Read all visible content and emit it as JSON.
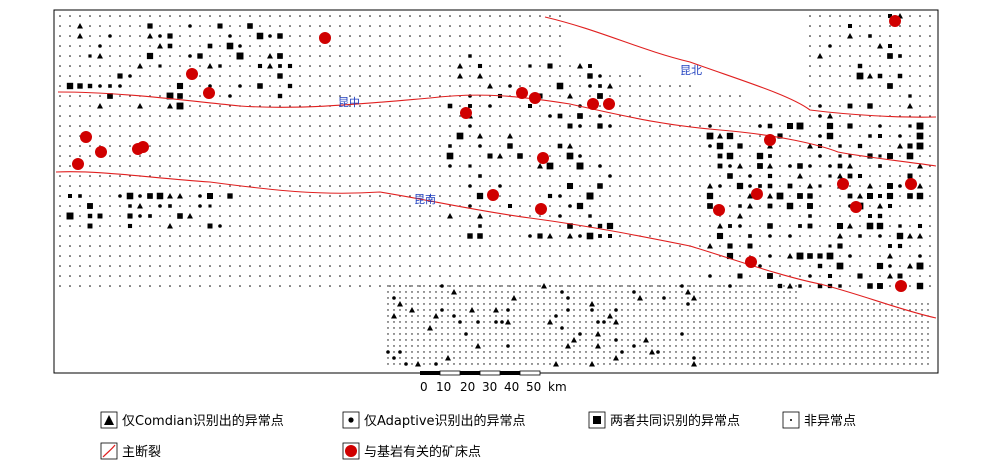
{
  "faults": {
    "label_north": "昆北",
    "label_middle": "昆中",
    "label_south": "昆南"
  },
  "scale": {
    "ticks": [
      "0",
      "10",
      "20",
      "30",
      "40",
      "50"
    ],
    "unit": "km"
  },
  "legend": {
    "comdian_only": "仅Comdian识别出的异常点",
    "adaptive_only": "仅Adaptive识别出的异常点",
    "both": "两者共同识别的异常点",
    "non_anomaly": "非异常点",
    "main_fault": "主断裂",
    "deposit": "与基岩有关的矿床点"
  },
  "colors": {
    "fault": "#e02020",
    "deposit": "#d00000",
    "fault_label": "#1f3fbf",
    "symbol": "#000000"
  }
}
